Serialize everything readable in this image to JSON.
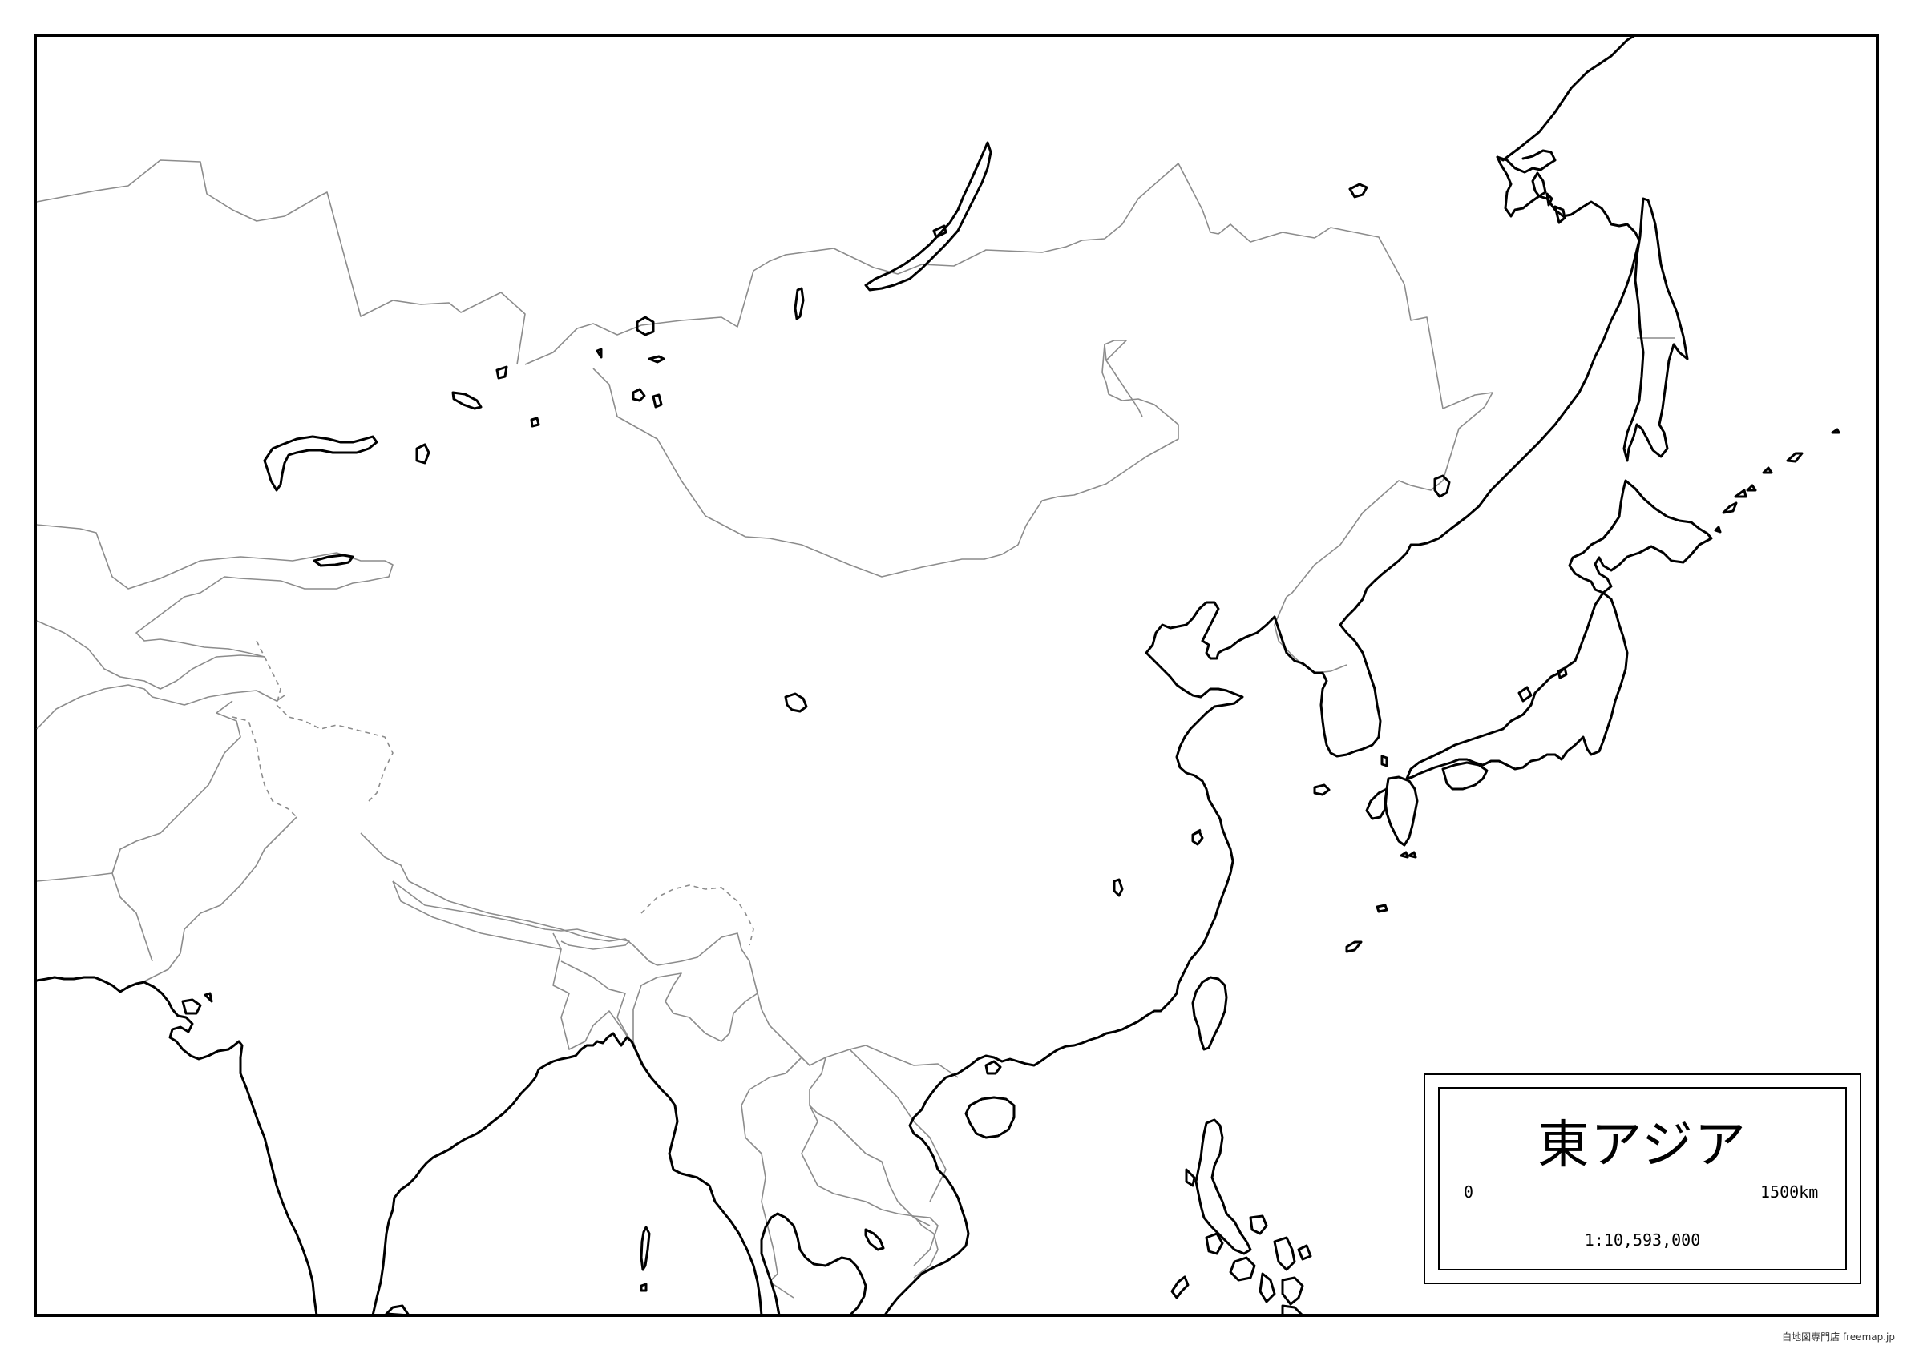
{
  "map": {
    "title": "東アジア",
    "scale": {
      "start_label": "0",
      "end_label": "1500km",
      "ratio": "1:10,593,000"
    },
    "credit": "白地図専門店 freemap.jp"
  },
  "colors": {
    "coastline": "#000000",
    "border": "#8c8c8c",
    "background": "#ffffff"
  }
}
